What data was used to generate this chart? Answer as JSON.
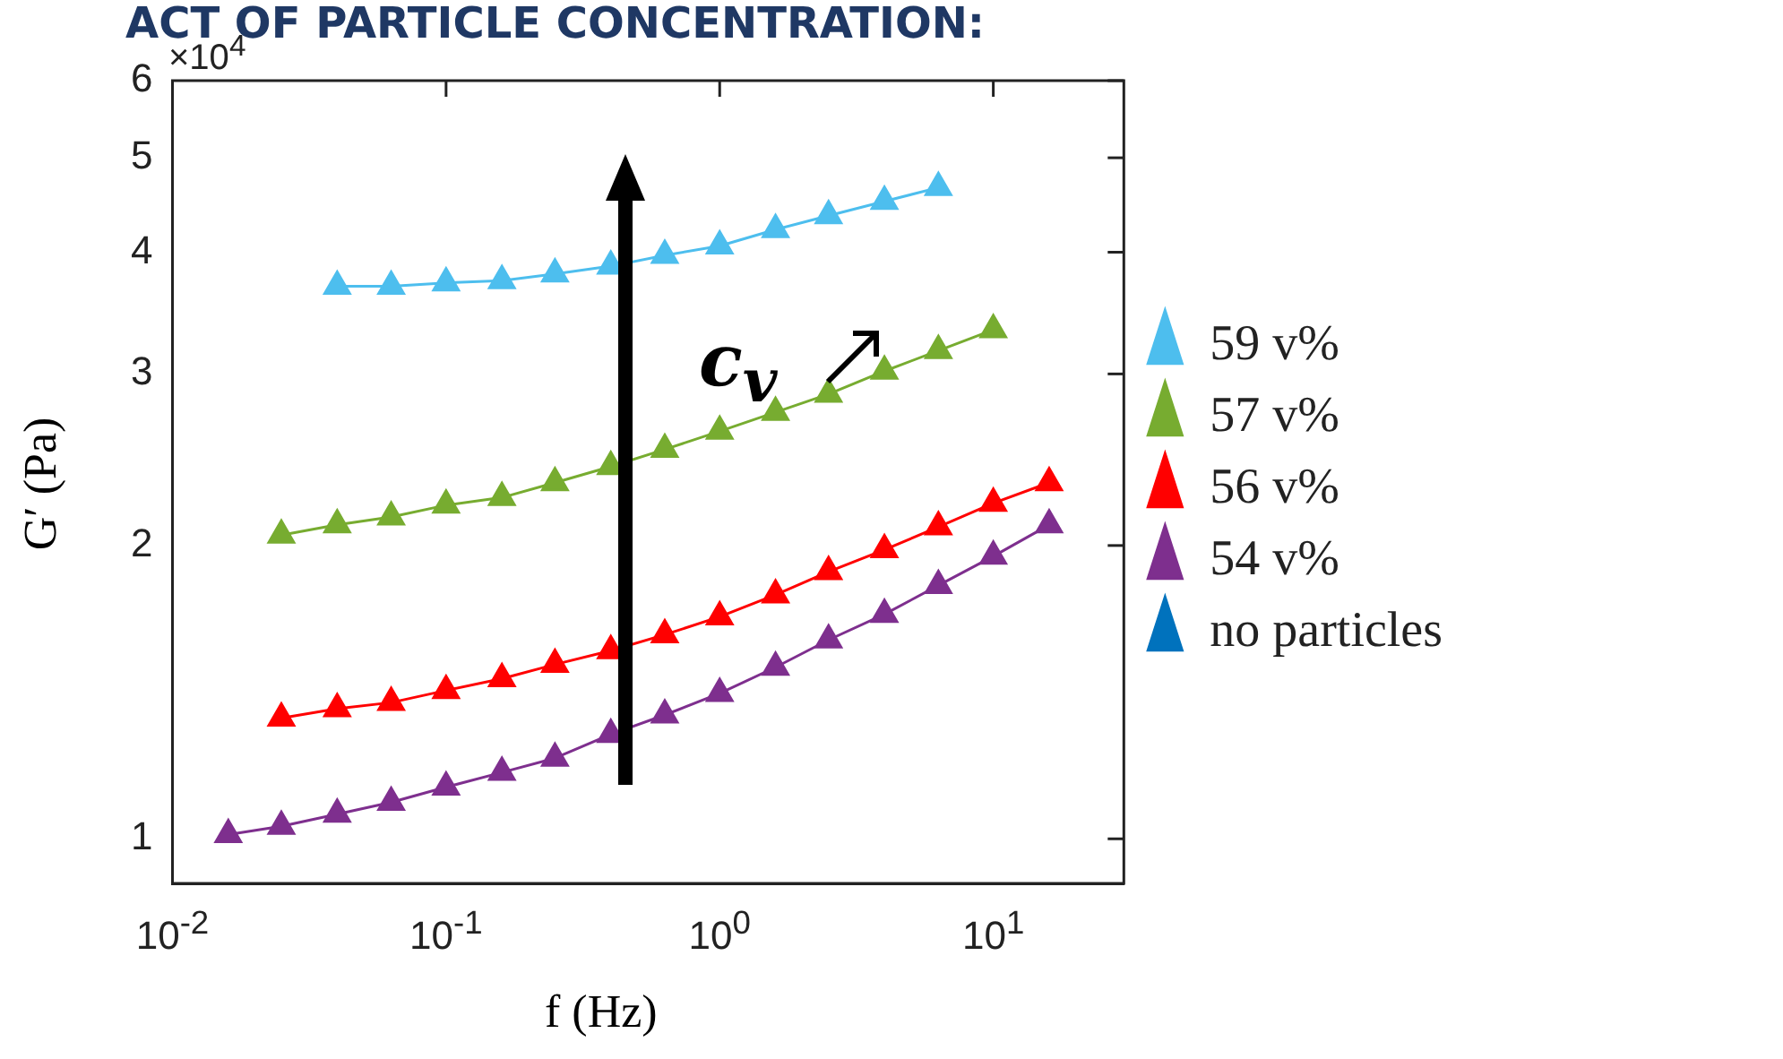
{
  "chart_data": {
    "type": "line",
    "title": "ACT OF PARTICLE CONCENTRATION:",
    "xlabel": "f (Hz)",
    "ylabel": "G′ (Pa)",
    "log": "xy",
    "xlim": [
      0.01,
      30
    ],
    "ylim": [
      0.9,
      6
    ],
    "xticks": [
      {
        "value": 0.01,
        "label": "10$^{-2}$"
      },
      {
        "value": 0.1,
        "label": "10$^{-1}$"
      },
      {
        "value": 1,
        "label": "10$^{0}$"
      },
      {
        "value": 10,
        "label": "10$^{1}$"
      }
    ],
    "yticks": [
      1,
      2,
      3,
      4,
      5,
      6
    ],
    "marker": "triangle",
    "grid": false,
    "legend": "right",
    "annotations": [
      "×10$^{4}$",
      "c$_{v}$"
    ],
    "series": [
      {
        "name": "59 v%",
        "color": "#4dbeee",
        "x": [
          0.04,
          0.063,
          0.1,
          0.16,
          0.25,
          0.4,
          0.63,
          1,
          1.6,
          2.5,
          4,
          6.3
        ],
        "values": [
          3.69,
          3.69,
          3.72,
          3.74,
          3.8,
          3.87,
          3.97,
          4.06,
          4.22,
          4.36,
          4.51,
          4.66
        ]
      },
      {
        "name": "57 v%",
        "color": "#77ac30",
        "x": [
          0.025,
          0.04,
          0.063,
          0.1,
          0.16,
          0.25,
          0.4,
          0.63,
          1,
          1.6,
          2.5,
          4,
          6.3,
          10
        ],
        "values": [
          2.05,
          2.1,
          2.14,
          2.2,
          2.24,
          2.32,
          2.41,
          2.51,
          2.62,
          2.74,
          2.86,
          3.02,
          3.17,
          3.33
        ]
      },
      {
        "name": "56 v%",
        "color": "#ff0000",
        "x": [
          0.025,
          0.04,
          0.063,
          0.1,
          0.16,
          0.25,
          0.4,
          0.63,
          1,
          1.6,
          2.5,
          4,
          6.3,
          10,
          16
        ],
        "values": [
          1.33,
          1.36,
          1.38,
          1.42,
          1.46,
          1.51,
          1.56,
          1.62,
          1.69,
          1.78,
          1.88,
          1.98,
          2.09,
          2.21,
          2.32
        ]
      },
      {
        "name": "54 v%",
        "color": "#7e2f8e",
        "x": [
          0.016,
          0.025,
          0.04,
          0.063,
          0.1,
          0.16,
          0.25,
          0.4,
          0.63,
          1,
          1.6,
          2.5,
          4,
          6.3,
          10,
          16
        ],
        "values": [
          1.01,
          1.03,
          1.06,
          1.09,
          1.13,
          1.17,
          1.21,
          1.28,
          1.34,
          1.41,
          1.5,
          1.6,
          1.7,
          1.82,
          1.95,
          2.1
        ]
      },
      {
        "name": "no particles",
        "color": "#0072bd"
      }
    ]
  }
}
